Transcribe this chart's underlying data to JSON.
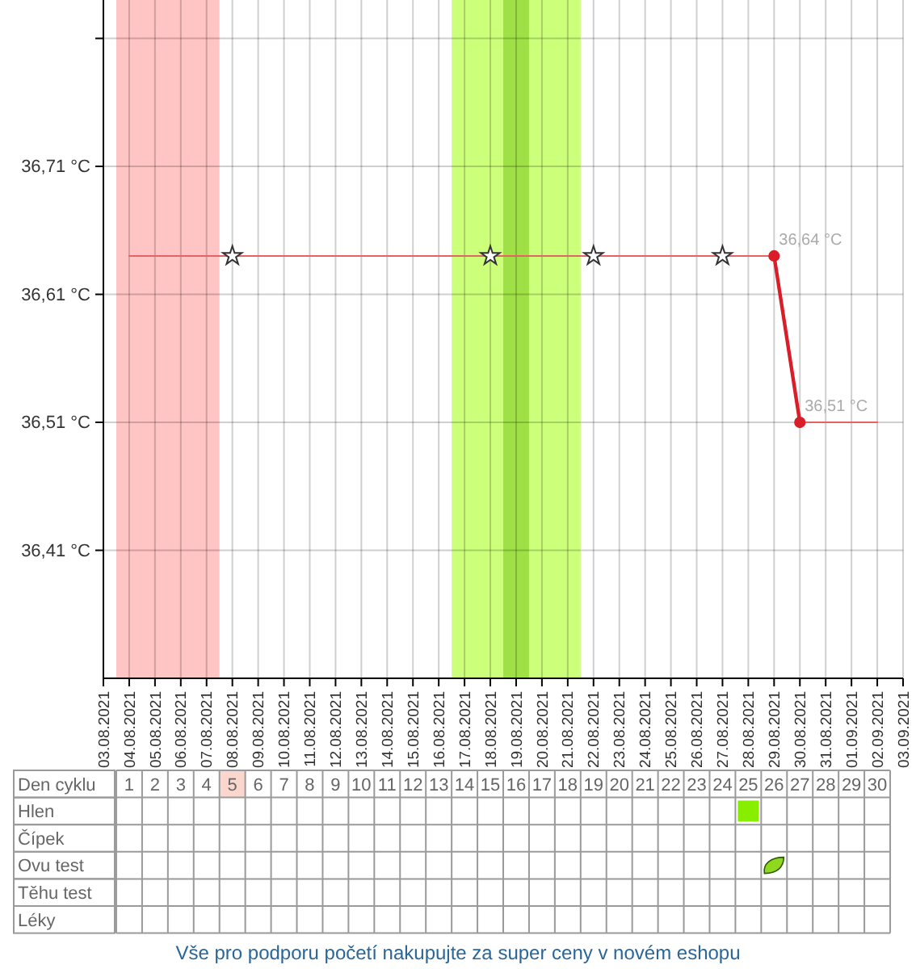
{
  "chart_data": {
    "type": "line",
    "xlim": [
      "2021-08-03",
      "2021-09-03"
    ],
    "xticks": [
      {
        "value": "2021-08-03",
        "label": "03.08.2021"
      },
      {
        "value": "2021-08-04",
        "label": "04.08.2021"
      },
      {
        "value": "2021-08-05",
        "label": "05.08.2021"
      },
      {
        "value": "2021-08-06",
        "label": "06.08.2021"
      },
      {
        "value": "2021-08-07",
        "label": "07.08.2021"
      },
      {
        "value": "2021-08-08",
        "label": "08.08.2021"
      },
      {
        "value": "2021-08-09",
        "label": "09.08.2021"
      },
      {
        "value": "2021-08-10",
        "label": "10.08.2021"
      },
      {
        "value": "2021-08-11",
        "label": "11.08.2021"
      },
      {
        "value": "2021-08-12",
        "label": "12.08.2021"
      },
      {
        "value": "2021-08-13",
        "label": "13.08.2021"
      },
      {
        "value": "2021-08-14",
        "label": "14.08.2021"
      },
      {
        "value": "2021-08-15",
        "label": "15.08.2021"
      },
      {
        "value": "2021-08-16",
        "label": "16.08.2021"
      },
      {
        "value": "2021-08-17",
        "label": "17.08.2021"
      },
      {
        "value": "2021-08-18",
        "label": "18.08.2021"
      },
      {
        "value": "2021-08-19",
        "label": "19.08.2021"
      },
      {
        "value": "2021-08-20",
        "label": "20.08.2021"
      },
      {
        "value": "2021-08-21",
        "label": "21.08.2021"
      },
      {
        "value": "2021-08-22",
        "label": "22.08.2021"
      },
      {
        "value": "2021-08-23",
        "label": "23.08.2021"
      },
      {
        "value": "2021-08-24",
        "label": "24.08.2021"
      },
      {
        "value": "2021-08-25",
        "label": "25.08.2021"
      },
      {
        "value": "2021-08-26",
        "label": "26.08.2021"
      },
      {
        "value": "2021-08-27",
        "label": "27.08.2021"
      },
      {
        "value": "2021-08-28",
        "label": "28.08.2021"
      },
      {
        "value": "2021-08-29",
        "label": "29.08.2021"
      },
      {
        "value": "2021-08-30",
        "label": "30.08.2021"
      },
      {
        "value": "2021-08-31",
        "label": "31.08.2021"
      },
      {
        "value": "2021-09-01",
        "label": "01.09.2021"
      },
      {
        "value": "2021-09-02",
        "label": "02.09.2021"
      },
      {
        "value": "2021-09-03",
        "label": "03.09.2021"
      }
    ],
    "ylim": [
      36.31,
      36.84
    ],
    "yticks": [
      {
        "value": 36.41,
        "label": "36,41 °C"
      },
      {
        "value": 36.51,
        "label": "36,51 °C"
      },
      {
        "value": 36.61,
        "label": "36,61 °C"
      },
      {
        "value": 36.71,
        "label": "36,71 °C"
      },
      {
        "value": 36.81,
        "label": null
      }
    ],
    "x2lim": [
      "2021-08-03T12:00",
      "2021-09-02T12:00"
    ],
    "x2label": "Den cyklu",
    "x2ticks": [
      {
        "value": "2021-08-04",
        "label": "1"
      },
      {
        "value": "2021-08-05",
        "label": "2"
      },
      {
        "value": "2021-08-06",
        "label": "3"
      },
      {
        "value": "2021-08-07",
        "label": "4"
      },
      {
        "value": "2021-08-08",
        "label": "5"
      },
      {
        "value": "2021-08-09",
        "label": "6"
      },
      {
        "value": "2021-08-10",
        "label": "7"
      },
      {
        "value": "2021-08-11",
        "label": "8"
      },
      {
        "value": "2021-08-12",
        "label": "9"
      },
      {
        "value": "2021-08-13",
        "label": "10"
      },
      {
        "value": "2021-08-14",
        "label": "11"
      },
      {
        "value": "2021-08-15",
        "label": "12"
      },
      {
        "value": "2021-08-16",
        "label": "13"
      },
      {
        "value": "2021-08-17",
        "label": "14"
      },
      {
        "value": "2021-08-18",
        "label": "15"
      },
      {
        "value": "2021-08-19",
        "label": "16"
      },
      {
        "value": "2021-08-20",
        "label": "17"
      },
      {
        "value": "2021-08-21",
        "label": "18"
      },
      {
        "value": "2021-08-22",
        "label": "19"
      },
      {
        "value": "2021-08-23",
        "label": "20"
      },
      {
        "value": "2021-08-24",
        "label": "21"
      },
      {
        "value": "2021-08-25",
        "label": "22"
      },
      {
        "value": "2021-08-26",
        "label": "23"
      },
      {
        "value": "2021-08-27",
        "label": "24"
      },
      {
        "value": "2021-08-28",
        "label": "25"
      },
      {
        "value": "2021-08-29",
        "label": "26"
      },
      {
        "value": "2021-08-30",
        "label": "27"
      },
      {
        "value": "2021-08-31",
        "label": "28"
      },
      {
        "value": "2021-09-01",
        "label": "29"
      },
      {
        "value": "2021-09-02",
        "label": "30"
      }
    ],
    "grid": true,
    "bands": [
      {
        "axis": "x",
        "from": "2021-08-03T12:00",
        "to": "2021-08-07T12:00",
        "color": "#ffc4c4"
      },
      {
        "axis": "x",
        "from": "2021-08-16T12:00",
        "to": "2021-08-21T12:00",
        "color": "#ccff7a"
      },
      {
        "axis": "x",
        "from": "2021-08-18T12:00",
        "to": "2021-08-19T12:00",
        "color": "#9ee046"
      }
    ],
    "series": [
      {
        "color": "#e46464",
        "marker": "none",
        "x": [
          "2021-08-04",
          "2021-08-05",
          "2021-08-06",
          "2021-08-07",
          "2021-08-08",
          "2021-08-09",
          "2021-08-10",
          "2021-08-11",
          "2021-08-12",
          "2021-08-13",
          "2021-08-14",
          "2021-08-15",
          "2021-08-16",
          "2021-08-17",
          "2021-08-18",
          "2021-08-19",
          "2021-08-20",
          "2021-08-21",
          "2021-08-22",
          "2021-08-23",
          "2021-08-24",
          "2021-08-25",
          "2021-08-26",
          "2021-08-27",
          "2021-08-28",
          "2021-08-29"
        ],
        "values": [
          36.64,
          36.64,
          36.64,
          36.64,
          36.64,
          36.64,
          36.64,
          36.64,
          36.64,
          36.64,
          36.64,
          36.64,
          36.64,
          36.64,
          36.64,
          36.64,
          36.64,
          36.64,
          36.64,
          36.64,
          36.64,
          36.64,
          36.64,
          36.64,
          36.64,
          36.64
        ]
      },
      {
        "color": "#e46464",
        "marker": "none",
        "x": [
          "2021-08-30",
          "2021-08-31",
          "2021-09-01",
          "2021-09-02"
        ],
        "values": [
          36.51,
          36.51,
          36.51,
          36.51
        ]
      },
      {
        "color": "#d91e2a",
        "marker": "circle",
        "x": [
          "2021-08-29",
          "2021-08-30"
        ],
        "values": [
          36.64,
          36.51
        ],
        "value_labels": [
          "36,64 °C",
          "36,51 °C"
        ]
      },
      {
        "type": "scatter",
        "color": "#333333",
        "marker": "star",
        "x": [
          "2021-08-08",
          "2021-08-18",
          "2021-08-22",
          "2021-08-27"
        ],
        "values": [
          36.64,
          36.64,
          36.64,
          36.64
        ]
      }
    ],
    "annotations": [
      "Hlen",
      "Čípek",
      "Ovu test",
      "Těhu test",
      "Léky",
      "Vše pro podporu početí nakupujte za super ceny v novém eshopu"
    ]
  }
}
